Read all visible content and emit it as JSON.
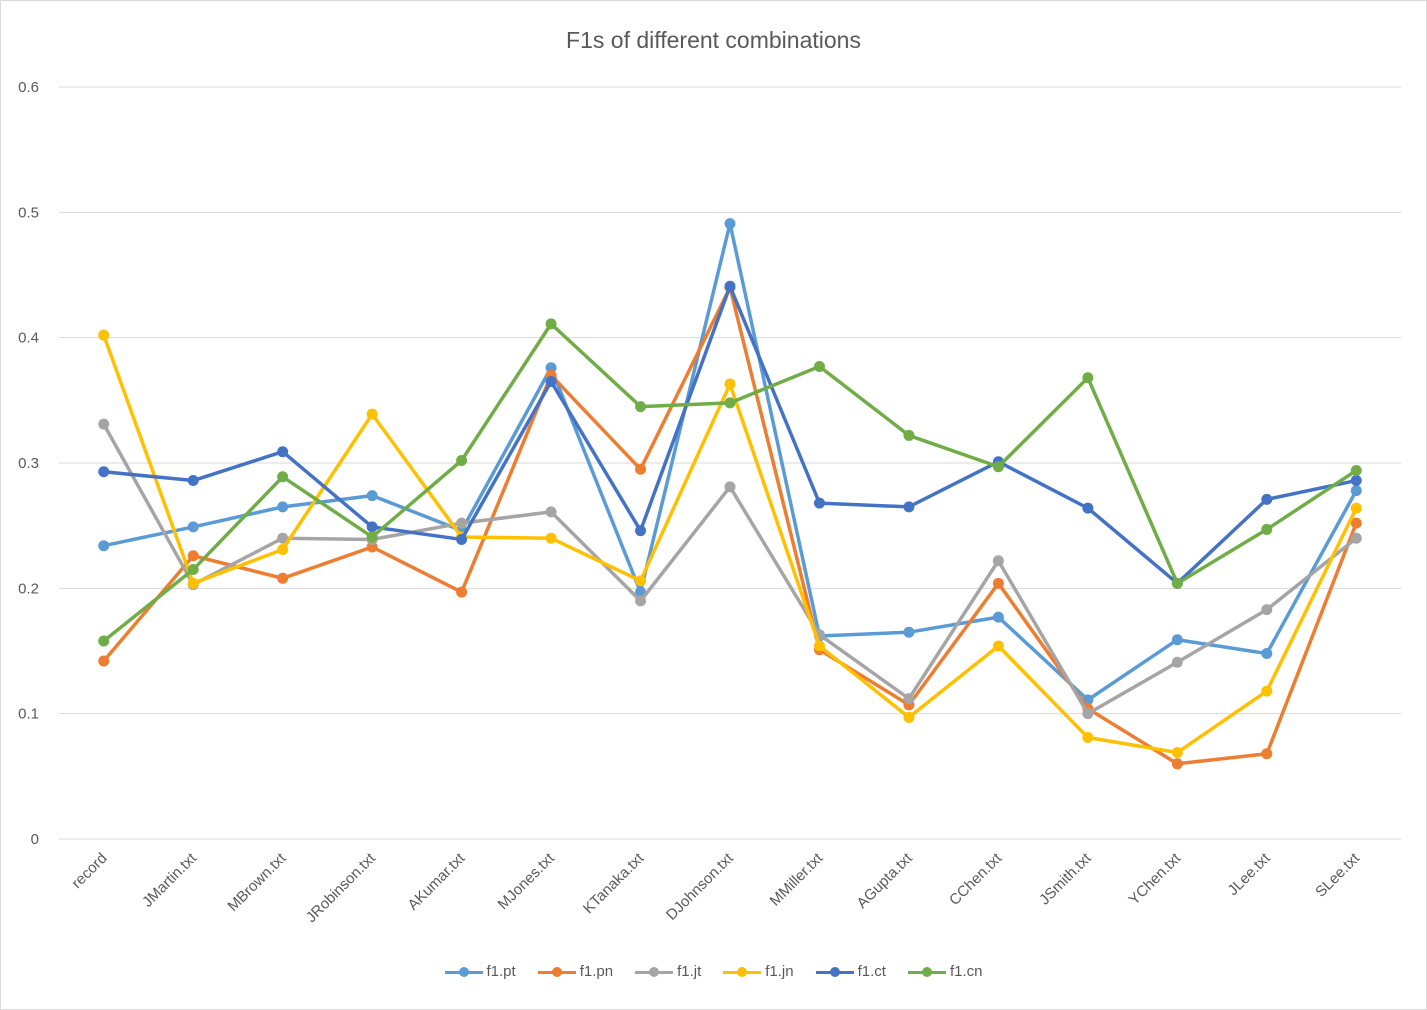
{
  "chart_data": {
    "type": "line",
    "title": "F1s of different combinations",
    "xlabel": "",
    "ylabel": "",
    "ylim": [
      0,
      0.6
    ],
    "yticks": [
      "0",
      "0.1",
      "0.2",
      "0.3",
      "0.4",
      "0.5",
      "0.6"
    ],
    "grid": true,
    "legend_position": "bottom",
    "categories": [
      "record",
      "JMartin.txt",
      "MBrown.txt",
      "JRobinson.txt",
      "AKumar.txt",
      "MJones.txt",
      "KTanaka.txt",
      "DJohnson.txt",
      "MMiller.txt",
      "AGupta.txt",
      "CChen.txt",
      "JSmith.txt",
      "YChen.txt",
      "JLee.txt",
      "SLee.txt"
    ],
    "series": [
      {
        "name": "f1.pt",
        "color": "#5B9BD5",
        "values": [
          0.234,
          0.249,
          0.265,
          0.274,
          0.246,
          0.376,
          0.197,
          0.491,
          0.162,
          0.165,
          0.177,
          0.111,
          0.159,
          0.148,
          0.278
        ]
      },
      {
        "name": "f1.pn",
        "color": "#ED7D31",
        "values": [
          0.142,
          0.226,
          0.208,
          0.233,
          0.197,
          0.37,
          0.295,
          0.44,
          0.151,
          0.107,
          0.204,
          0.104,
          0.06,
          0.068,
          0.252
        ]
      },
      {
        "name": "f1.jt",
        "color": "#A5A5A5",
        "values": [
          0.331,
          0.203,
          0.24,
          0.239,
          0.252,
          0.261,
          0.19,
          0.281,
          0.163,
          0.112,
          0.222,
          0.1,
          0.141,
          0.183,
          0.24
        ]
      },
      {
        "name": "f1.jn",
        "color": "#FFC000",
        "values": [
          0.402,
          0.204,
          0.231,
          0.339,
          0.241,
          0.24,
          0.206,
          0.363,
          0.154,
          0.097,
          0.154,
          0.081,
          0.069,
          0.118,
          0.264
        ]
      },
      {
        "name": "f1.ct",
        "color": "#4472C4",
        "values": [
          0.293,
          0.286,
          0.309,
          0.249,
          0.239,
          0.365,
          0.246,
          0.441,
          0.268,
          0.265,
          0.301,
          0.264,
          0.204,
          0.271,
          0.286
        ]
      },
      {
        "name": "f1.cn",
        "color": "#70AD47",
        "values": [
          0.158,
          0.215,
          0.289,
          0.241,
          0.302,
          0.411,
          0.345,
          0.348,
          0.377,
          0.322,
          0.297,
          0.368,
          0.204,
          0.247,
          0.294
        ]
      }
    ]
  }
}
